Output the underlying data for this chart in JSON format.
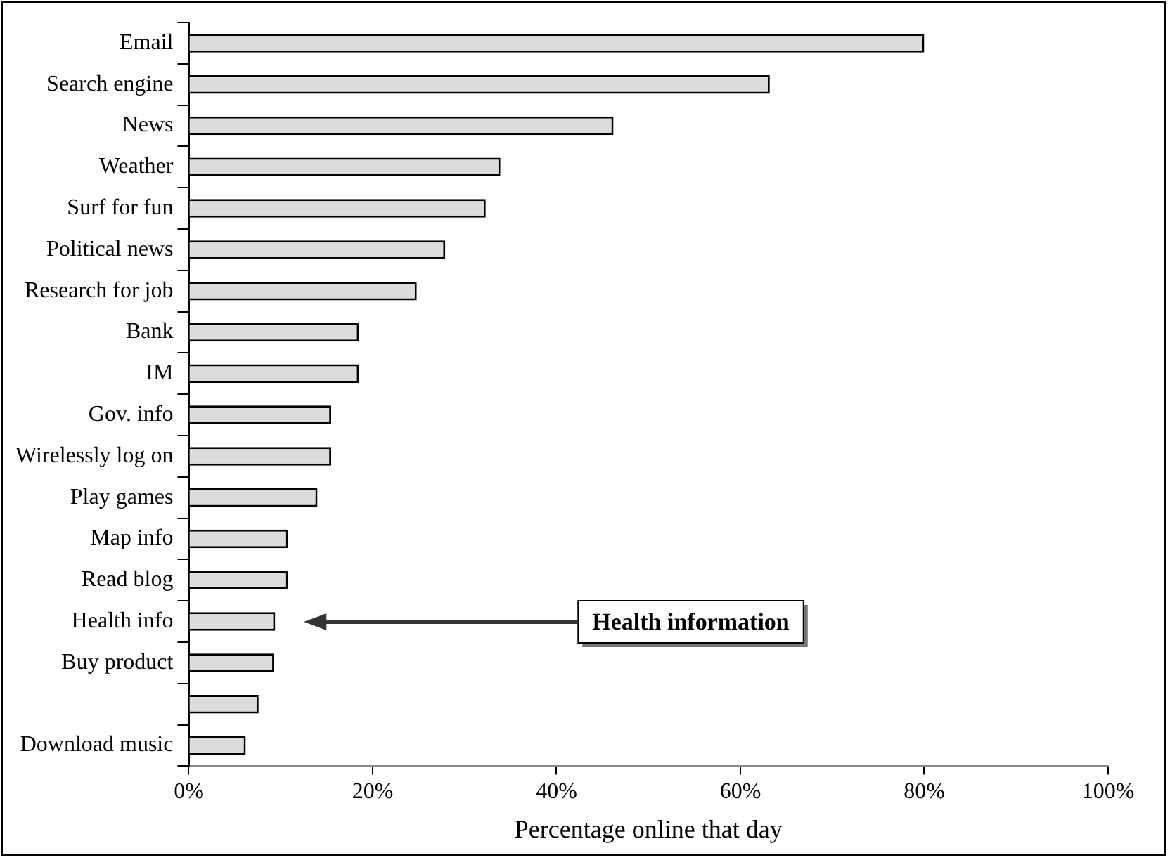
{
  "chart_data": {
    "type": "bar",
    "orientation": "horizontal",
    "xlabel": "Percentage online that day",
    "categories": [
      "Email",
      "Search engine",
      "News",
      "Weather",
      "Surf for fun",
      "Political news",
      "Research for job",
      "Bank",
      "IM",
      "Gov. info",
      "Wirelessly log on",
      "Play games",
      "Map info",
      "Read blog",
      "Health info",
      "Buy product",
      null,
      "Download music"
    ],
    "values": [
      80.0,
      63.2,
      46.2,
      33.9,
      32.3,
      27.9,
      24.8,
      18.5,
      18.5,
      15.5,
      15.5,
      14.0,
      10.8,
      10.8,
      9.4,
      9.3,
      7.6,
      6.2
    ],
    "color": "#dcdcdc",
    "xlim": [
      0,
      100
    ],
    "xticks": [
      {
        "value": 0,
        "label": "0%"
      },
      {
        "value": 20,
        "label": "20%"
      },
      {
        "value": 40,
        "label": "40%"
      },
      {
        "value": 60,
        "label": "60%"
      },
      {
        "value": 80,
        "label": "80%"
      },
      {
        "value": 100,
        "label": "100%"
      }
    ],
    "annotations": [
      "Health information"
    ],
    "grid": false,
    "legend": false
  }
}
